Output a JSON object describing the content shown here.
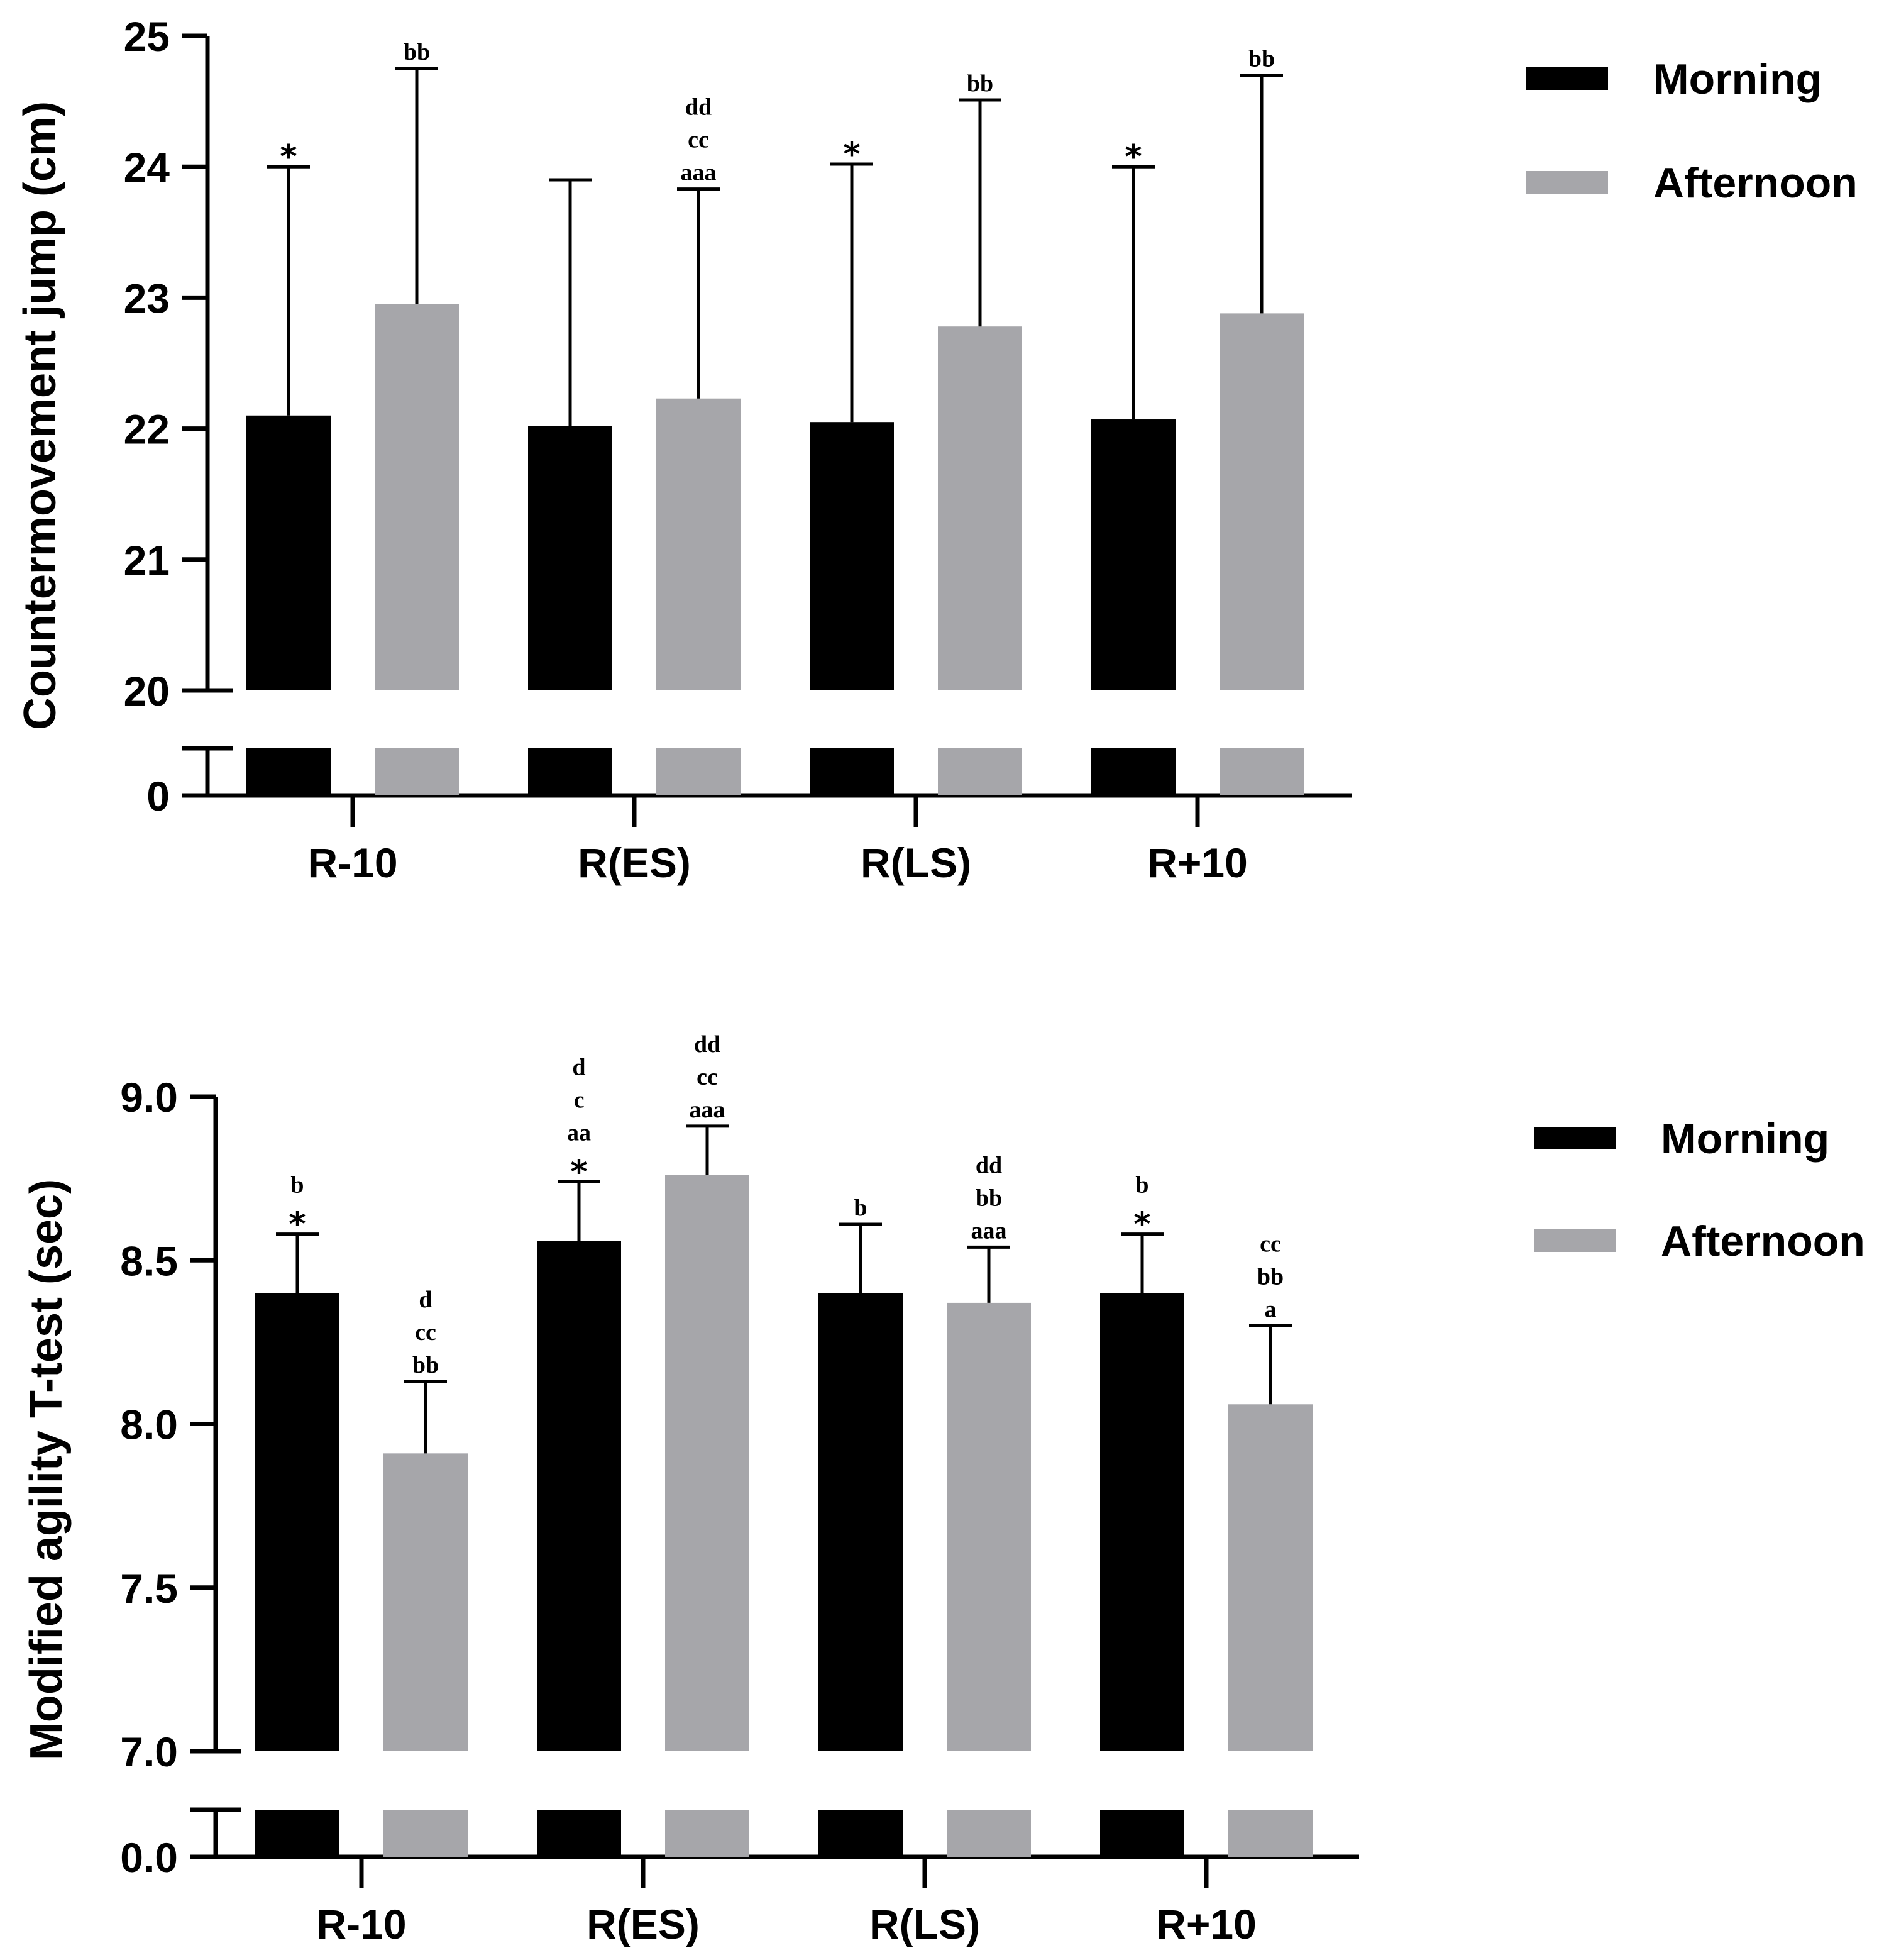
{
  "colors": {
    "morning": "#000000",
    "afternoon": "#a6a6aa",
    "axis": "#000000"
  },
  "chart_data": [
    {
      "type": "bar",
      "ylabel": "Countermovement jump (cm)",
      "categories": [
        "R-10",
        "R(ES)",
        "R(LS)",
        "R+10"
      ],
      "axis_break": true,
      "ylim_lower": [
        0,
        0.5
      ],
      "ylim_upper": [
        20,
        25
      ],
      "yticks_upper": [
        "20",
        "21",
        "22",
        "23",
        "24",
        "25"
      ],
      "ytick_lower": "0",
      "legend_position": "top-right",
      "series": [
        {
          "name": "Morning",
          "values": [
            22.1,
            22.02,
            22.05,
            22.07
          ],
          "errors": [
            1.9,
            1.88,
            1.97,
            1.93
          ],
          "annotations": [
            [
              "*"
            ],
            [],
            [
              "*"
            ],
            [
              "*"
            ]
          ]
        },
        {
          "name": "Afternoon",
          "values": [
            22.95,
            22.23,
            22.78,
            22.88
          ],
          "errors": [
            1.8,
            1.6,
            1.73,
            1.82
          ],
          "annotations": [
            [
              "bb"
            ],
            [
              "dd",
              "cc",
              "aaa"
            ],
            [
              "bb"
            ],
            [
              "bb"
            ]
          ]
        }
      ]
    },
    {
      "type": "bar",
      "ylabel": "Modified agility T-test (sec)",
      "categories": [
        "R-10",
        "R(ES)",
        "R(LS)",
        "R+10"
      ],
      "axis_break": true,
      "ylim_lower": [
        0,
        0.5
      ],
      "ylim_upper": [
        7.0,
        9.0
      ],
      "yticks_upper": [
        "7.0",
        "7.5",
        "8.0",
        "8.5",
        "9.0"
      ],
      "ytick_lower": "0.0",
      "legend_position": "top-right",
      "series": [
        {
          "name": "Morning",
          "values": [
            8.4,
            8.56,
            8.4,
            8.4
          ],
          "errors": [
            0.18,
            0.18,
            0.21,
            0.18
          ],
          "annotations": [
            [
              "b",
              "*"
            ],
            [
              "d",
              "c",
              "aa",
              "*"
            ],
            [
              "b"
            ],
            [
              "b",
              "*"
            ]
          ]
        },
        {
          "name": "Afternoon",
          "values": [
            7.91,
            8.76,
            8.37,
            8.06
          ],
          "errors": [
            0.22,
            0.15,
            0.17,
            0.24
          ],
          "annotations": [
            [
              "d",
              "cc",
              "bb"
            ],
            [
              "dd",
              "cc",
              "aaa"
            ],
            [
              "dd",
              "bb",
              "aaa"
            ],
            [
              "cc",
              "bb",
              "a"
            ]
          ]
        }
      ]
    }
  ]
}
